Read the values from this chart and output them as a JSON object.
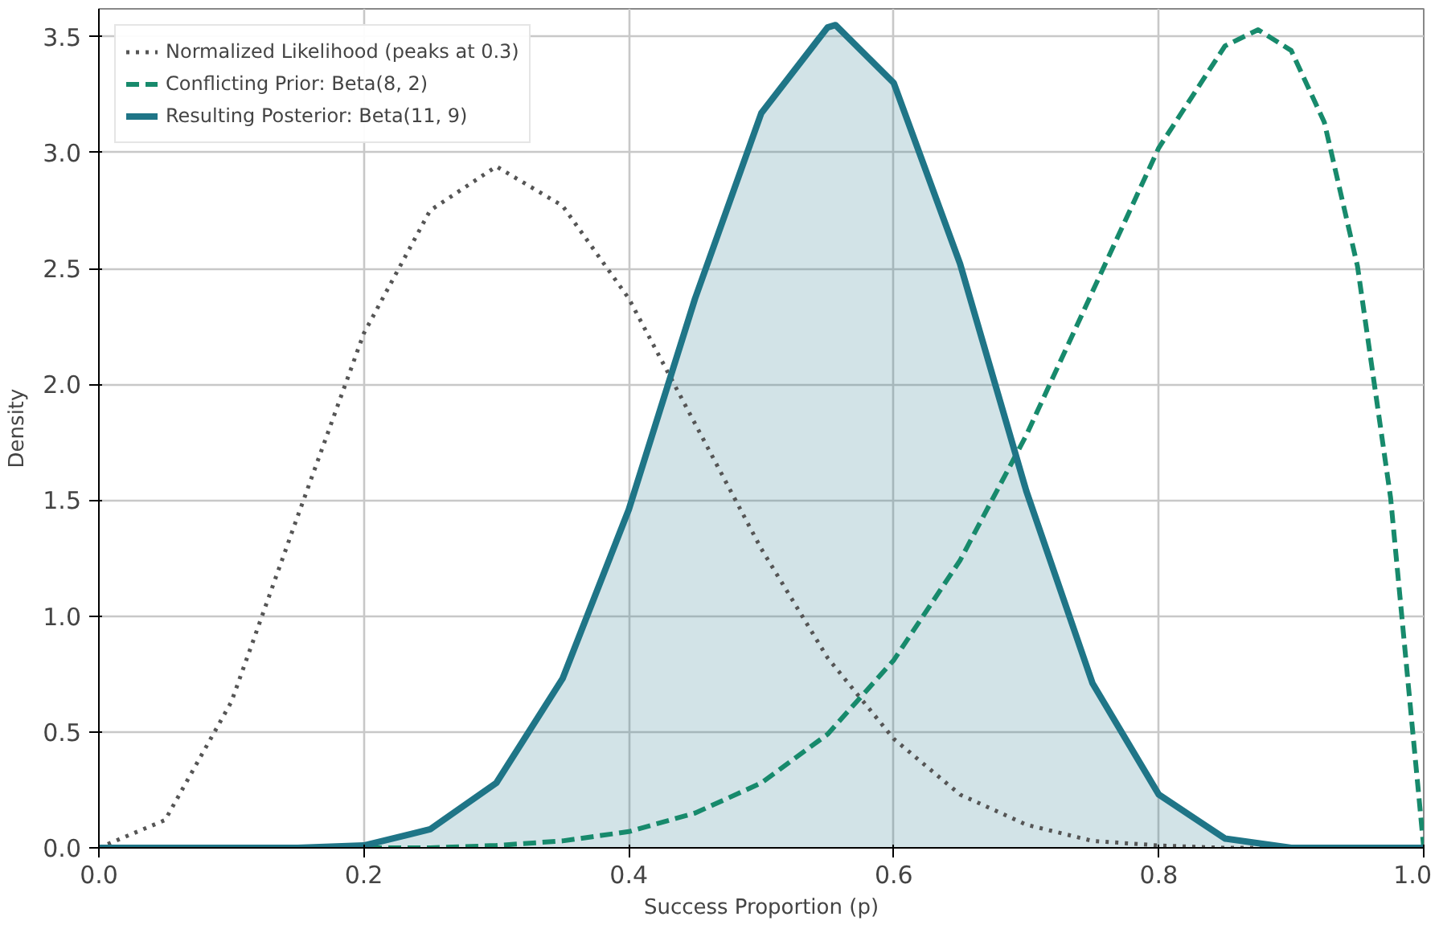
{
  "chart_data": {
    "type": "line",
    "xlabel": "Success Proportion (p)",
    "ylabel": "Density",
    "xlim": [
      0,
      1
    ],
    "ylim": [
      0,
      3.62
    ],
    "xticks": [
      {
        "value": 0,
        "label": "0.0"
      },
      0.2,
      0.4,
      0.6,
      0.8,
      {
        "value": 1,
        "label": "1.0"
      }
    ],
    "yticks": [
      {
        "value": 0,
        "label": "0.0"
      },
      0.5,
      {
        "value": 1,
        "label": "1.0"
      },
      1.5,
      {
        "value": 2,
        "label": "2.0"
      },
      2.5,
      {
        "value": 3,
        "label": "3.0"
      },
      3.5
    ],
    "grid": true,
    "legend": "top left",
    "series": [
      {
        "name": "Normalized Likelihood (peaks at 0.3)",
        "color": "#555555",
        "line_style": "dotted",
        "x": [
          0,
          0.05,
          0.1,
          0.15,
          0.2,
          0.25,
          0.3,
          0.35,
          0.4,
          0.45,
          0.5,
          0.55,
          0.6,
          0.65,
          0.7,
          0.75,
          0.8,
          0.85,
          0.9,
          1
        ],
        "values": [
          0,
          0.12,
          0.63,
          1.43,
          2.22,
          2.75,
          2.94,
          2.77,
          2.37,
          1.83,
          1.29,
          0.82,
          0.47,
          0.23,
          0.1,
          0.03,
          0.01,
          0,
          0,
          0
        ]
      },
      {
        "name": "Conflicting Prior: Beta(8, 2)",
        "color": "#178a6c",
        "line_style": "dashed",
        "x": [
          0,
          0.2,
          0.25,
          0.3,
          0.35,
          0.4,
          0.45,
          0.5,
          0.55,
          0.6,
          0.65,
          0.7,
          0.75,
          0.8,
          0.85,
          0.875,
          0.9,
          0.925,
          0.95,
          0.975,
          1
        ],
        "values": [
          0,
          0,
          0,
          0.01,
          0.03,
          0.07,
          0.15,
          0.28,
          0.49,
          0.81,
          1.24,
          1.78,
          2.4,
          3.02,
          3.46,
          3.53,
          3.44,
          3.13,
          2.51,
          1.51,
          0
        ]
      },
      {
        "name": "Resulting Posterior: Beta(11, 9)",
        "color": "#1f7587",
        "type": "area",
        "line_style": "solid",
        "x": [
          0,
          0.1,
          0.15,
          0.2,
          0.25,
          0.3,
          0.35,
          0.4,
          0.45,
          0.5,
          0.55,
          0.556,
          0.6,
          0.65,
          0.7,
          0.75,
          0.8,
          0.85,
          0.9,
          1
        ],
        "values": [
          0,
          0,
          0,
          0.01,
          0.08,
          0.28,
          0.73,
          1.46,
          2.37,
          3.17,
          3.54,
          3.55,
          3.3,
          2.52,
          1.54,
          0.71,
          0.23,
          0.04,
          0,
          0
        ]
      }
    ]
  }
}
